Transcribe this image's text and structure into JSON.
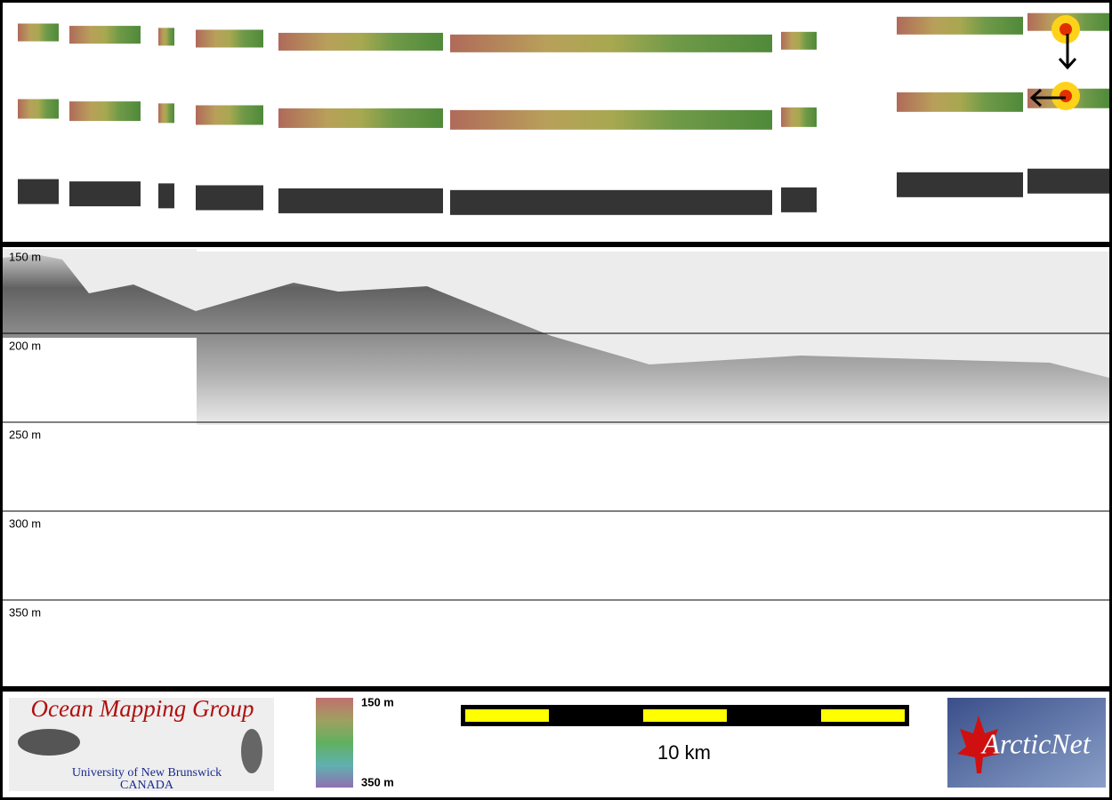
{
  "depth_labels": [
    "150 m",
    "200 m",
    "250 m",
    "300 m",
    "350 m"
  ],
  "logo_left": {
    "title": "Ocean Mapping Group",
    "line1": "University of New Brunswick",
    "line2": "CANADA"
  },
  "colorbar": {
    "top": "150 m",
    "bottom": "350 m"
  },
  "scale_label": "10 km",
  "logo_right": {
    "title": "ArcticNet"
  }
}
